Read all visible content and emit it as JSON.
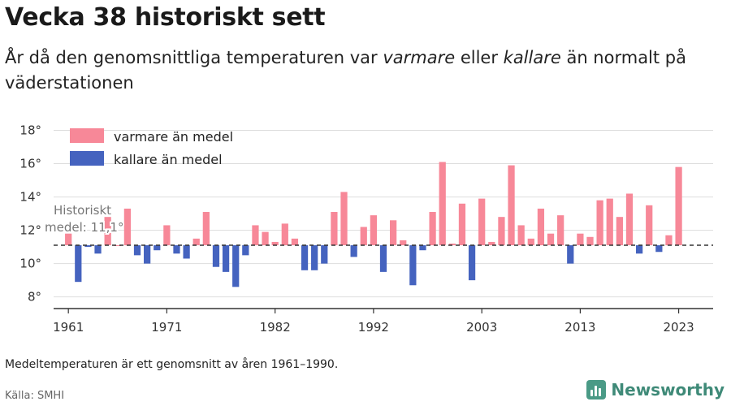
{
  "header": {
    "title": "Vecka 38 historiskt sett",
    "subtitle_pre": "År då den genomsnittliga temperaturen var ",
    "subtitle_warm": "varmare",
    "subtitle_mid": " eller ",
    "subtitle_cold": "kallare",
    "subtitle_post": " än normalt på väderstationen"
  },
  "footer": {
    "note": "Medeltemperaturen är ett genomsnitt av åren 1961–1990.",
    "source": "Källa: SMHI",
    "brand": "Newsworthy"
  },
  "colors": {
    "warm": "#f78898",
    "cold": "#4563bf",
    "mean_line": "#333333",
    "grid": "#dddddd",
    "brand": "#4a9a86"
  },
  "icons": {
    "logo": "bar-chart-logo-icon"
  },
  "chart_data": {
    "type": "bar",
    "baseline": 11.1,
    "baseline_label_line1": "Historiskt",
    "baseline_label_line2": "medel: 11,1°",
    "ylim": [
      7.3,
      19
    ],
    "yticks": [
      8,
      10,
      12,
      14,
      16,
      18
    ],
    "ytick_labels": [
      "8°",
      "10°",
      "12°",
      "14°",
      "16°",
      "18°"
    ],
    "xticks": [
      1961,
      1971,
      1982,
      1992,
      2003,
      2013,
      2023
    ],
    "xtick_labels": [
      "1961",
      "1971",
      "1982",
      "1992",
      "2003",
      "2013",
      "2023"
    ],
    "xlim": [
      1959.5,
      2026.5
    ],
    "legend_position": "top-left",
    "series": [
      {
        "name": "varmare än medel",
        "color": "#f78898"
      },
      {
        "name": "kallare än medel",
        "color": "#4563bf"
      }
    ],
    "years": [
      1961,
      1962,
      1963,
      1964,
      1965,
      1966,
      1967,
      1968,
      1969,
      1970,
      1971,
      1972,
      1973,
      1974,
      1975,
      1976,
      1977,
      1978,
      1979,
      1980,
      1981,
      1982,
      1983,
      1984,
      1985,
      1986,
      1987,
      1988,
      1989,
      1990,
      1991,
      1992,
      1993,
      1994,
      1995,
      1996,
      1997,
      1998,
      1999,
      2000,
      2001,
      2002,
      2003,
      2004,
      2005,
      2006,
      2007,
      2008,
      2009,
      2010,
      2011,
      2012,
      2013,
      2014,
      2015,
      2016,
      2017,
      2018,
      2019,
      2020,
      2021,
      2022,
      2023
    ],
    "values": [
      11.8,
      8.9,
      11.0,
      10.6,
      12.8,
      11.1,
      13.3,
      10.5,
      10.0,
      10.8,
      12.3,
      10.6,
      10.3,
      11.5,
      13.1,
      9.8,
      9.5,
      8.6,
      10.5,
      12.3,
      11.9,
      11.3,
      12.4,
      11.5,
      9.6,
      9.6,
      10.0,
      13.1,
      14.3,
      10.4,
      12.2,
      12.9,
      9.5,
      12.6,
      11.4,
      8.7,
      10.8,
      13.1,
      16.1,
      11.2,
      13.6,
      9.0,
      13.9,
      11.3,
      12.8,
      15.9,
      12.3,
      11.5,
      13.3,
      11.8,
      12.9,
      10.0,
      11.8,
      11.6,
      13.8,
      13.9,
      12.8,
      14.2,
      10.6,
      13.5,
      10.7,
      11.7,
      15.8
    ]
  }
}
